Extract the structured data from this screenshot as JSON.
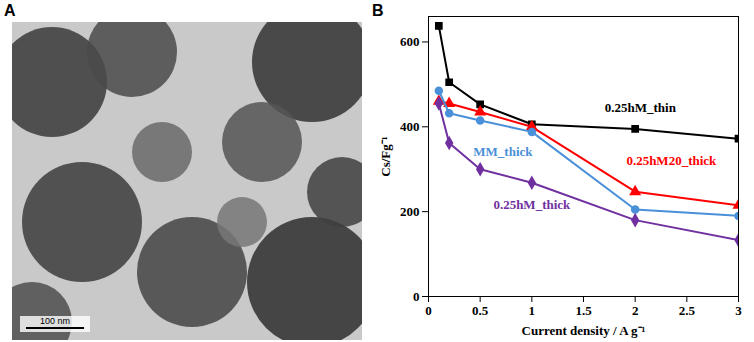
{
  "image_panel": {
    "panel_label": "A",
    "scale_bar": "100 nm"
  },
  "chart_data": {
    "type": "line",
    "panel_label": "B",
    "x_label": "Current density / A g⁻¹",
    "y_label": "Cs/Fg⁻¹",
    "x": [
      0.1,
      0.2,
      0.5,
      1,
      2,
      3
    ],
    "xlim": [
      0,
      3
    ],
    "xticks": [
      0,
      0.5,
      1,
      1.5,
      2,
      2.5,
      3
    ],
    "ylim": [
      0,
      660
    ],
    "yticks": [
      0,
      200,
      400,
      600
    ],
    "grid": false,
    "series": [
      {
        "name": "0.25hM_thin",
        "color": "#000000",
        "marker": "square",
        "values": [
          638,
          505,
          453,
          406,
          395,
          372
        ]
      },
      {
        "name": "0.25hM20_thick",
        "color": "#ff0000",
        "marker": "triangle",
        "values": [
          460,
          455,
          435,
          400,
          247,
          215
        ]
      },
      {
        "name": "MM_thick",
        "color": "#4a90d9",
        "marker": "circle",
        "values": [
          485,
          432,
          415,
          388,
          205,
          190
        ]
      },
      {
        "name": "0.25hM_thick",
        "color": "#7030a0",
        "marker": "diamond",
        "values": [
          455,
          362,
          300,
          268,
          180,
          133
        ]
      }
    ]
  }
}
